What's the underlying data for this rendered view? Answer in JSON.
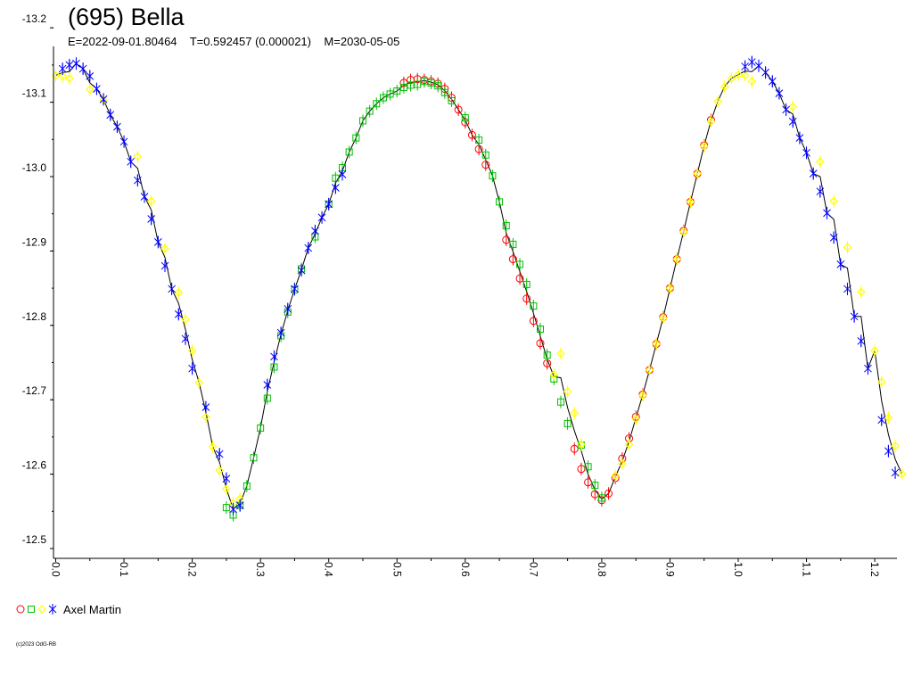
{
  "header": {
    "title": "(695) Bella",
    "subtitle": "E=2022-09-01.80464    T=0.592457 (0.000021)    M=2030-05-05"
  },
  "legend": {
    "observer": "Axel Martin",
    "marker_colors": [
      "#ff0000",
      "#00c000",
      "#ffff00",
      "#0000ff"
    ]
  },
  "copyright": "(c)2023 OdG-RB",
  "chart_data": {
    "type": "scatter",
    "x_ticks": [
      "0.0",
      "0.1",
      "0.2",
      "0.3",
      "0.4",
      "0.5",
      "0.6",
      "0.7",
      "0.8",
      "0.9",
      "1.0",
      "1.1",
      "1.2"
    ],
    "y_ticks": [
      "-13.2",
      "-13.1",
      "-13.0",
      "-12.9",
      "-12.8",
      "-12.7",
      "-12.6",
      "-12.5"
    ],
    "xlim": [
      0,
      1.245
    ],
    "ylim": [
      -13.2,
      -12.5
    ],
    "y_inverted": true,
    "grid": false,
    "series": [
      {
        "marker": "circle",
        "color": "#ff0000",
        "x": [
          0.51,
          0.52,
          0.53,
          0.54,
          0.55,
          0.56,
          0.57,
          0.58,
          0.59,
          0.6,
          0.61,
          0.62,
          0.63,
          0.66,
          0.67,
          0.68,
          0.69,
          0.7,
          0.71,
          0.72,
          0.76,
          0.77,
          0.78,
          0.79,
          0.8,
          0.81,
          0.82,
          0.83,
          0.84,
          0.85,
          0.86,
          0.87,
          0.88,
          0.89,
          0.9,
          0.91,
          0.92,
          0.93,
          0.94,
          0.95,
          0.96
        ],
        "y": [
          -13.126,
          -13.13,
          -13.131,
          -13.13,
          -13.128,
          -13.125,
          -13.118,
          -13.106,
          -13.09,
          -13.073,
          -13.056,
          -13.037,
          -13.016,
          -12.915,
          -12.889,
          -12.863,
          -12.836,
          -12.806,
          -12.776,
          -12.749,
          -12.634,
          -12.607,
          -12.589,
          -12.573,
          -12.565,
          -12.574,
          -12.595,
          -12.621,
          -12.648,
          -12.677,
          -12.707,
          -12.74,
          -12.775,
          -12.811,
          -12.85,
          -12.889,
          -12.927,
          -12.966,
          -13.004,
          -13.042,
          -13.076
        ]
      },
      {
        "marker": "square",
        "color": "#00c000",
        "x": [
          0.25,
          0.26,
          0.27,
          0.28,
          0.29,
          0.3,
          0.31,
          0.32,
          0.33,
          0.34,
          0.35,
          0.36,
          0.38,
          0.4,
          0.41,
          0.42,
          0.43,
          0.44,
          0.45,
          0.46,
          0.47,
          0.48,
          0.49,
          0.5,
          0.51,
          0.52,
          0.53,
          0.54,
          0.55,
          0.56,
          0.57,
          0.58,
          0.6,
          0.62,
          0.63,
          0.64,
          0.65,
          0.66,
          0.67,
          0.68,
          0.69,
          0.7,
          0.71,
          0.72,
          0.73,
          0.74,
          0.75,
          0.77,
          0.78,
          0.79,
          0.8
        ],
        "y": [
          -12.555,
          -12.545,
          -12.558,
          -12.584,
          -12.622,
          -12.662,
          -12.702,
          -12.744,
          -12.786,
          -12.818,
          -12.848,
          -12.876,
          -12.919,
          -12.963,
          -12.998,
          -13.012,
          -13.033,
          -13.052,
          -13.075,
          -13.088,
          -13.098,
          -13.106,
          -13.111,
          -13.115,
          -13.12,
          -13.123,
          -13.124,
          -13.128,
          -13.126,
          -13.122,
          -13.113,
          -13.102,
          -13.079,
          -13.049,
          -13.029,
          -13.001,
          -12.966,
          -12.934,
          -12.909,
          -12.882,
          -12.855,
          -12.826,
          -12.795,
          -12.76,
          -12.728,
          -12.697,
          -12.668,
          -12.639,
          -12.61,
          -12.585,
          -12.568
        ]
      },
      {
        "marker": "diamond",
        "color": "#ffff00",
        "x": [
          0.0,
          0.01,
          0.02,
          0.05,
          0.07,
          0.12,
          0.14,
          0.16,
          0.18,
          0.19,
          0.2,
          0.21,
          0.22,
          0.23,
          0.24,
          0.25,
          0.26,
          0.27,
          0.73,
          0.74,
          0.75,
          0.76,
          0.77,
          0.82,
          0.83,
          0.84,
          0.85,
          0.86,
          0.87,
          0.88,
          0.89,
          0.9,
          0.91,
          0.92,
          0.93,
          0.94,
          0.95,
          0.96,
          0.97,
          0.98,
          0.99,
          1.0,
          1.01,
          1.02,
          1.08,
          1.12,
          1.14,
          1.16,
          1.18,
          1.2,
          1.21,
          1.22,
          1.23,
          1.24
        ],
        "y": [
          -13.136,
          -13.135,
          -13.132,
          -13.117,
          -13.103,
          -13.027,
          -12.967,
          -12.903,
          -12.844,
          -12.808,
          -12.766,
          -12.723,
          -12.677,
          -12.637,
          -12.605,
          -12.58,
          -12.561,
          -12.567,
          -12.734,
          -12.762,
          -12.711,
          -12.682,
          -12.64,
          -12.598,
          -12.614,
          -12.64,
          -12.674,
          -12.706,
          -12.74,
          -12.775,
          -12.81,
          -12.85,
          -12.889,
          -12.926,
          -12.966,
          -13.004,
          -13.041,
          -13.074,
          -13.101,
          -13.121,
          -13.132,
          -13.137,
          -13.136,
          -13.128,
          -13.094,
          -13.02,
          -12.967,
          -12.905,
          -12.845,
          -12.766,
          -12.724,
          -12.676,
          -12.638,
          -12.6
        ]
      },
      {
        "marker": "asterisk",
        "color": "#0000ff",
        "x": [
          0.01,
          0.02,
          0.03,
          0.04,
          0.05,
          0.06,
          0.07,
          0.08,
          0.09,
          0.1,
          0.11,
          0.12,
          0.13,
          0.14,
          0.15,
          0.16,
          0.17,
          0.18,
          0.19,
          0.2,
          0.22,
          0.24,
          0.25,
          0.26,
          0.27,
          0.31,
          0.32,
          0.33,
          0.34,
          0.35,
          0.36,
          0.37,
          0.38,
          0.39,
          0.4,
          0.41,
          0.42,
          1.01,
          1.02,
          1.03,
          1.04,
          1.05,
          1.06,
          1.07,
          1.08,
          1.09,
          1.1,
          1.11,
          1.12,
          1.13,
          1.14,
          1.15,
          1.16,
          1.17,
          1.18,
          1.19,
          1.21,
          1.22,
          1.23
        ],
        "y": [
          -13.145,
          -13.15,
          -13.152,
          -13.145,
          -13.135,
          -13.118,
          -13.104,
          -13.083,
          -13.067,
          -13.047,
          -13.02,
          -12.995,
          -12.973,
          -12.943,
          -12.912,
          -12.88,
          -12.849,
          -12.815,
          -12.782,
          -12.742,
          -12.69,
          -12.627,
          -12.594,
          -12.553,
          -12.558,
          -12.72,
          -12.758,
          -12.79,
          -12.822,
          -12.849,
          -12.874,
          -12.904,
          -12.927,
          -12.945,
          -12.963,
          -12.985,
          -13.003,
          -13.148,
          -13.154,
          -13.149,
          -13.14,
          -13.128,
          -13.112,
          -13.09,
          -13.074,
          -13.052,
          -13.032,
          -13.004,
          -12.98,
          -12.951,
          -12.918,
          -12.882,
          -12.849,
          -12.812,
          -12.779,
          -12.742,
          -12.673,
          -12.631,
          -12.602
        ]
      }
    ]
  }
}
